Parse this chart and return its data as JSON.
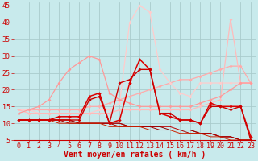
{
  "background_color": "#c8eaec",
  "grid_color": "#aacccc",
  "xlabel": "Vent moyen/en rafales ( km/h )",
  "xlabel_color": "#cc0000",
  "xlabel_fontsize": 7,
  "tick_color": "#cc0000",
  "tick_fontsize": 6,
  "xlim": [
    -0.5,
    23.5
  ],
  "ylim": [
    5,
    46
  ],
  "yticks": [
    5,
    10,
    15,
    20,
    25,
    30,
    35,
    40,
    45
  ],
  "xticks": [
    0,
    1,
    2,
    3,
    4,
    5,
    6,
    7,
    8,
    9,
    10,
    11,
    12,
    13,
    14,
    15,
    16,
    17,
    18,
    19,
    20,
    21,
    22,
    23
  ],
  "lines": [
    {
      "x": [
        0,
        1,
        2,
        3,
        4,
        5,
        6,
        7,
        8,
        9,
        10,
        11,
        12,
        13,
        14,
        15,
        16,
        17,
        18,
        19,
        20,
        21,
        22,
        23
      ],
      "y": [
        14,
        14,
        14,
        14,
        14,
        14,
        14,
        15,
        15,
        16,
        17,
        18,
        19,
        20,
        21,
        22,
        23,
        23,
        24,
        25,
        26,
        27,
        27,
        22
      ],
      "color": "#ffaaaa",
      "lw": 0.9,
      "marker": "D",
      "ms": 2.0
    },
    {
      "x": [
        0,
        1,
        2,
        3,
        4,
        5,
        6,
        7,
        8,
        9,
        10,
        11,
        12,
        13,
        14,
        15,
        16,
        17,
        18,
        19,
        20,
        21,
        22,
        23
      ],
      "y": [
        14,
        14,
        13,
        13,
        13,
        13,
        13,
        13,
        14,
        14,
        16,
        40,
        45,
        43,
        26,
        22,
        19,
        18,
        22,
        22,
        22,
        22,
        22,
        22
      ],
      "color": "#ffcccc",
      "lw": 0.9,
      "marker": "D",
      "ms": 2.0
    },
    {
      "x": [
        0,
        1,
        2,
        3,
        4,
        5,
        6,
        7,
        8,
        9,
        10,
        11,
        12,
        13,
        14,
        15,
        16,
        17,
        18,
        19,
        20,
        21,
        22,
        23
      ],
      "y": [
        14,
        13,
        13,
        13,
        13,
        13,
        13,
        13,
        13,
        13,
        14,
        14,
        14,
        14,
        14,
        14,
        14,
        14,
        15,
        16,
        17,
        41,
        22,
        22
      ],
      "color": "#ffbbbb",
      "lw": 0.9,
      "marker": "D",
      "ms": 2.0
    },
    {
      "x": [
        0,
        1,
        2,
        3,
        4,
        5,
        6,
        7,
        8,
        9,
        10,
        11,
        12,
        13,
        14,
        15,
        16,
        17,
        18,
        19,
        20,
        21,
        22,
        23
      ],
      "y": [
        13,
        14,
        15,
        17,
        22,
        26,
        28,
        30,
        29,
        19,
        17,
        16,
        15,
        15,
        15,
        15,
        15,
        15,
        16,
        17,
        18,
        20,
        22,
        22
      ],
      "color": "#ff9999",
      "lw": 0.9,
      "marker": "D",
      "ms": 2.0
    },
    {
      "x": [
        0,
        1,
        2,
        3,
        4,
        5,
        6,
        7,
        8,
        9,
        10,
        11,
        12,
        13,
        14,
        15,
        16,
        17,
        18,
        19,
        20,
        21,
        22,
        23
      ],
      "y": [
        11,
        11,
        11,
        11,
        12,
        12,
        12,
        18,
        19,
        10,
        11,
        22,
        29,
        26,
        13,
        12,
        11,
        11,
        10,
        16,
        15,
        15,
        15,
        6
      ],
      "color": "#dd0000",
      "lw": 1.1,
      "marker": "D",
      "ms": 2.2
    },
    {
      "x": [
        0,
        1,
        2,
        3,
        4,
        5,
        6,
        7,
        8,
        9,
        10,
        11,
        12,
        13,
        14,
        15,
        16,
        17,
        18,
        19,
        20,
        21,
        22,
        23
      ],
      "y": [
        11,
        11,
        11,
        11,
        11,
        11,
        11,
        17,
        18,
        10,
        22,
        23,
        26,
        26,
        13,
        13,
        11,
        11,
        10,
        15,
        15,
        14,
        15,
        5
      ],
      "color": "#cc0000",
      "lw": 1.0,
      "marker": "D",
      "ms": 2.0
    },
    {
      "x": [
        0,
        1,
        2,
        3,
        4,
        5,
        6,
        7,
        8,
        9,
        10,
        11,
        12,
        13,
        14,
        15,
        16,
        17,
        18,
        19,
        20,
        21,
        22,
        23
      ],
      "y": [
        11,
        11,
        11,
        11,
        11,
        11,
        10,
        10,
        10,
        10,
        10,
        9,
        9,
        9,
        9,
        9,
        8,
        8,
        7,
        7,
        6,
        6,
        5,
        5
      ],
      "color": "#bb0000",
      "lw": 0.7,
      "marker": null,
      "ms": 0
    },
    {
      "x": [
        0,
        1,
        2,
        3,
        4,
        5,
        6,
        7,
        8,
        9,
        10,
        11,
        12,
        13,
        14,
        15,
        16,
        17,
        18,
        19,
        20,
        21,
        22,
        23
      ],
      "y": [
        11,
        11,
        11,
        11,
        11,
        11,
        10,
        10,
        10,
        10,
        10,
        9,
        9,
        9,
        9,
        8,
        8,
        8,
        7,
        7,
        6,
        6,
        5,
        5
      ],
      "color": "#990000",
      "lw": 0.7,
      "marker": null,
      "ms": 0
    },
    {
      "x": [
        0,
        1,
        2,
        3,
        4,
        5,
        6,
        7,
        8,
        9,
        10,
        11,
        12,
        13,
        14,
        15,
        16,
        17,
        18,
        19,
        20,
        21,
        22,
        23
      ],
      "y": [
        11,
        11,
        11,
        11,
        11,
        10,
        10,
        10,
        10,
        10,
        9,
        9,
        9,
        9,
        8,
        8,
        8,
        7,
        7,
        7,
        6,
        6,
        5,
        5
      ],
      "color": "#aa0000",
      "lw": 0.7,
      "marker": null,
      "ms": 0
    },
    {
      "x": [
        0,
        1,
        2,
        3,
        4,
        5,
        6,
        7,
        8,
        9,
        10,
        11,
        12,
        13,
        14,
        15,
        16,
        17,
        18,
        19,
        20,
        21,
        22,
        23
      ],
      "y": [
        11,
        11,
        11,
        11,
        10,
        10,
        10,
        10,
        10,
        9,
        9,
        9,
        9,
        8,
        8,
        8,
        7,
        7,
        7,
        6,
        6,
        5,
        5,
        5
      ],
      "color": "#cc2200",
      "lw": 0.7,
      "marker": null,
      "ms": 0
    }
  ]
}
